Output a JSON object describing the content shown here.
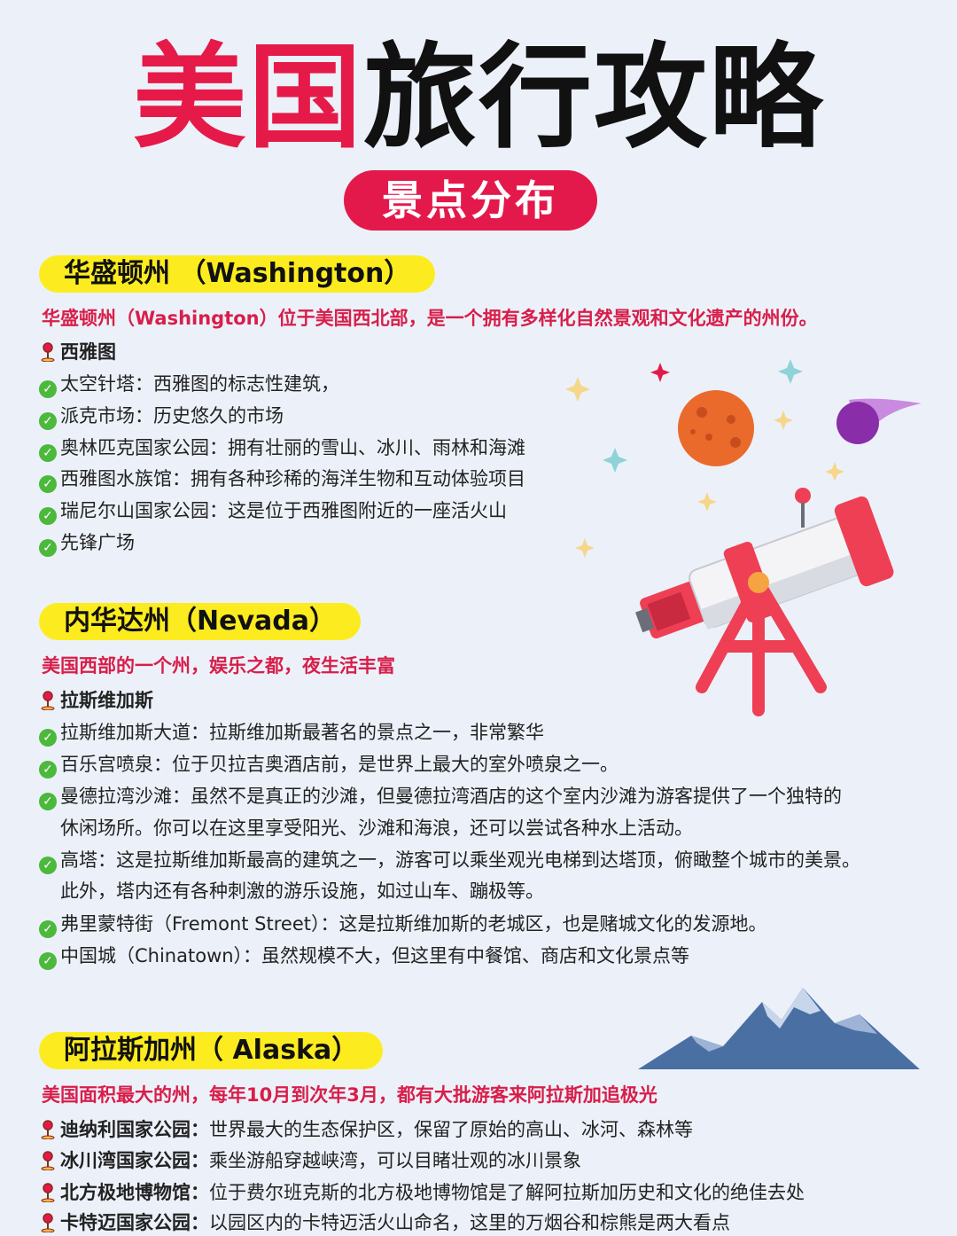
{
  "title": {
    "part1": "美国",
    "part2": "旅行攻略"
  },
  "subtitle": "景点分布",
  "sections": [
    {
      "heading": "华盛顿州 （Washington）",
      "intro": "华盛顿州（Washington）位于美国西北部，是一个拥有多样化自然景观和文化遗产的州份。",
      "city": "西雅图",
      "items": [
        "太空针塔：西雅图的标志性建筑，",
        "派克市场：历史悠久的市场",
        "奥林匹克国家公园：拥有壮丽的雪山、冰川、雨林和海滩",
        "西雅图水族馆：拥有各种珍稀的海洋生物和互动体验项目",
        "瑞尼尔山国家公园：这是位于西雅图附近的一座活火山",
        "先锋广场"
      ]
    },
    {
      "heading": "内华达州（Nevada）",
      "intro": "美国西部的一个州，娱乐之都，夜生活丰富",
      "city": "拉斯维加斯",
      "items": [
        "拉斯维加斯大道：拉斯维加斯最著名的景点之一，非常繁华",
        "百乐宫喷泉：位于贝拉吉奥酒店前，是世界上最大的室外喷泉之一。",
        "曼德拉湾沙滩：虽然不是真正的沙滩，但曼德拉湾酒店的这个室内沙滩为游客提供了一个独特的",
        "休闲场所。你可以在这里享受阳光、沙滩和海浪，还可以尝试各种水上活动。",
        "高塔：这是拉斯维加斯最高的建筑之一，游客可以乘坐观光电梯到达塔顶，俯瞰整个城市的美景。",
        "此外，塔内还有各种刺激的游乐设施，如过山车、蹦极等。",
        "弗里蒙特街（Fremont Street）：这是拉斯维加斯的老城区，也是赌城文化的发源地。",
        "中国城（Chinatown）：虽然规模不大，但这里有中餐馆、商店和文化景点等"
      ]
    },
    {
      "heading": "阿拉斯加州（ Alaska）",
      "intro": "美国面积最大的州，每年10月到次年3月，都有大批游客来阿拉斯加追极光",
      "items": [
        {
          "name": "迪纳利国家公园：",
          "desc": "世界最大的生态保护区，保留了原始的高山、冰河、森林等"
        },
        {
          "name": "冰川湾国家公园：",
          "desc": "乘坐游船穿越峡湾，可以目睹壮观的冰川景象"
        },
        {
          "name": "北方极地博物馆：",
          "desc": "位于费尔班克斯的北方极地博物馆是了解阿拉斯加历史和文化的绝佳去处"
        },
        {
          "name": "卡特迈国家公园：",
          "desc": "以园区内的卡特迈活火山命名，这里的万烟谷和棕熊是两大看点"
        }
      ]
    }
  ],
  "icons": {
    "check": "check-circle-icon",
    "pin": "location-pin-icon"
  },
  "colors": {
    "accent_red": "#e4194b",
    "highlight_yellow": "#fcec1f",
    "check_green": "#4cb83c",
    "background": "#ecf1f9"
  }
}
